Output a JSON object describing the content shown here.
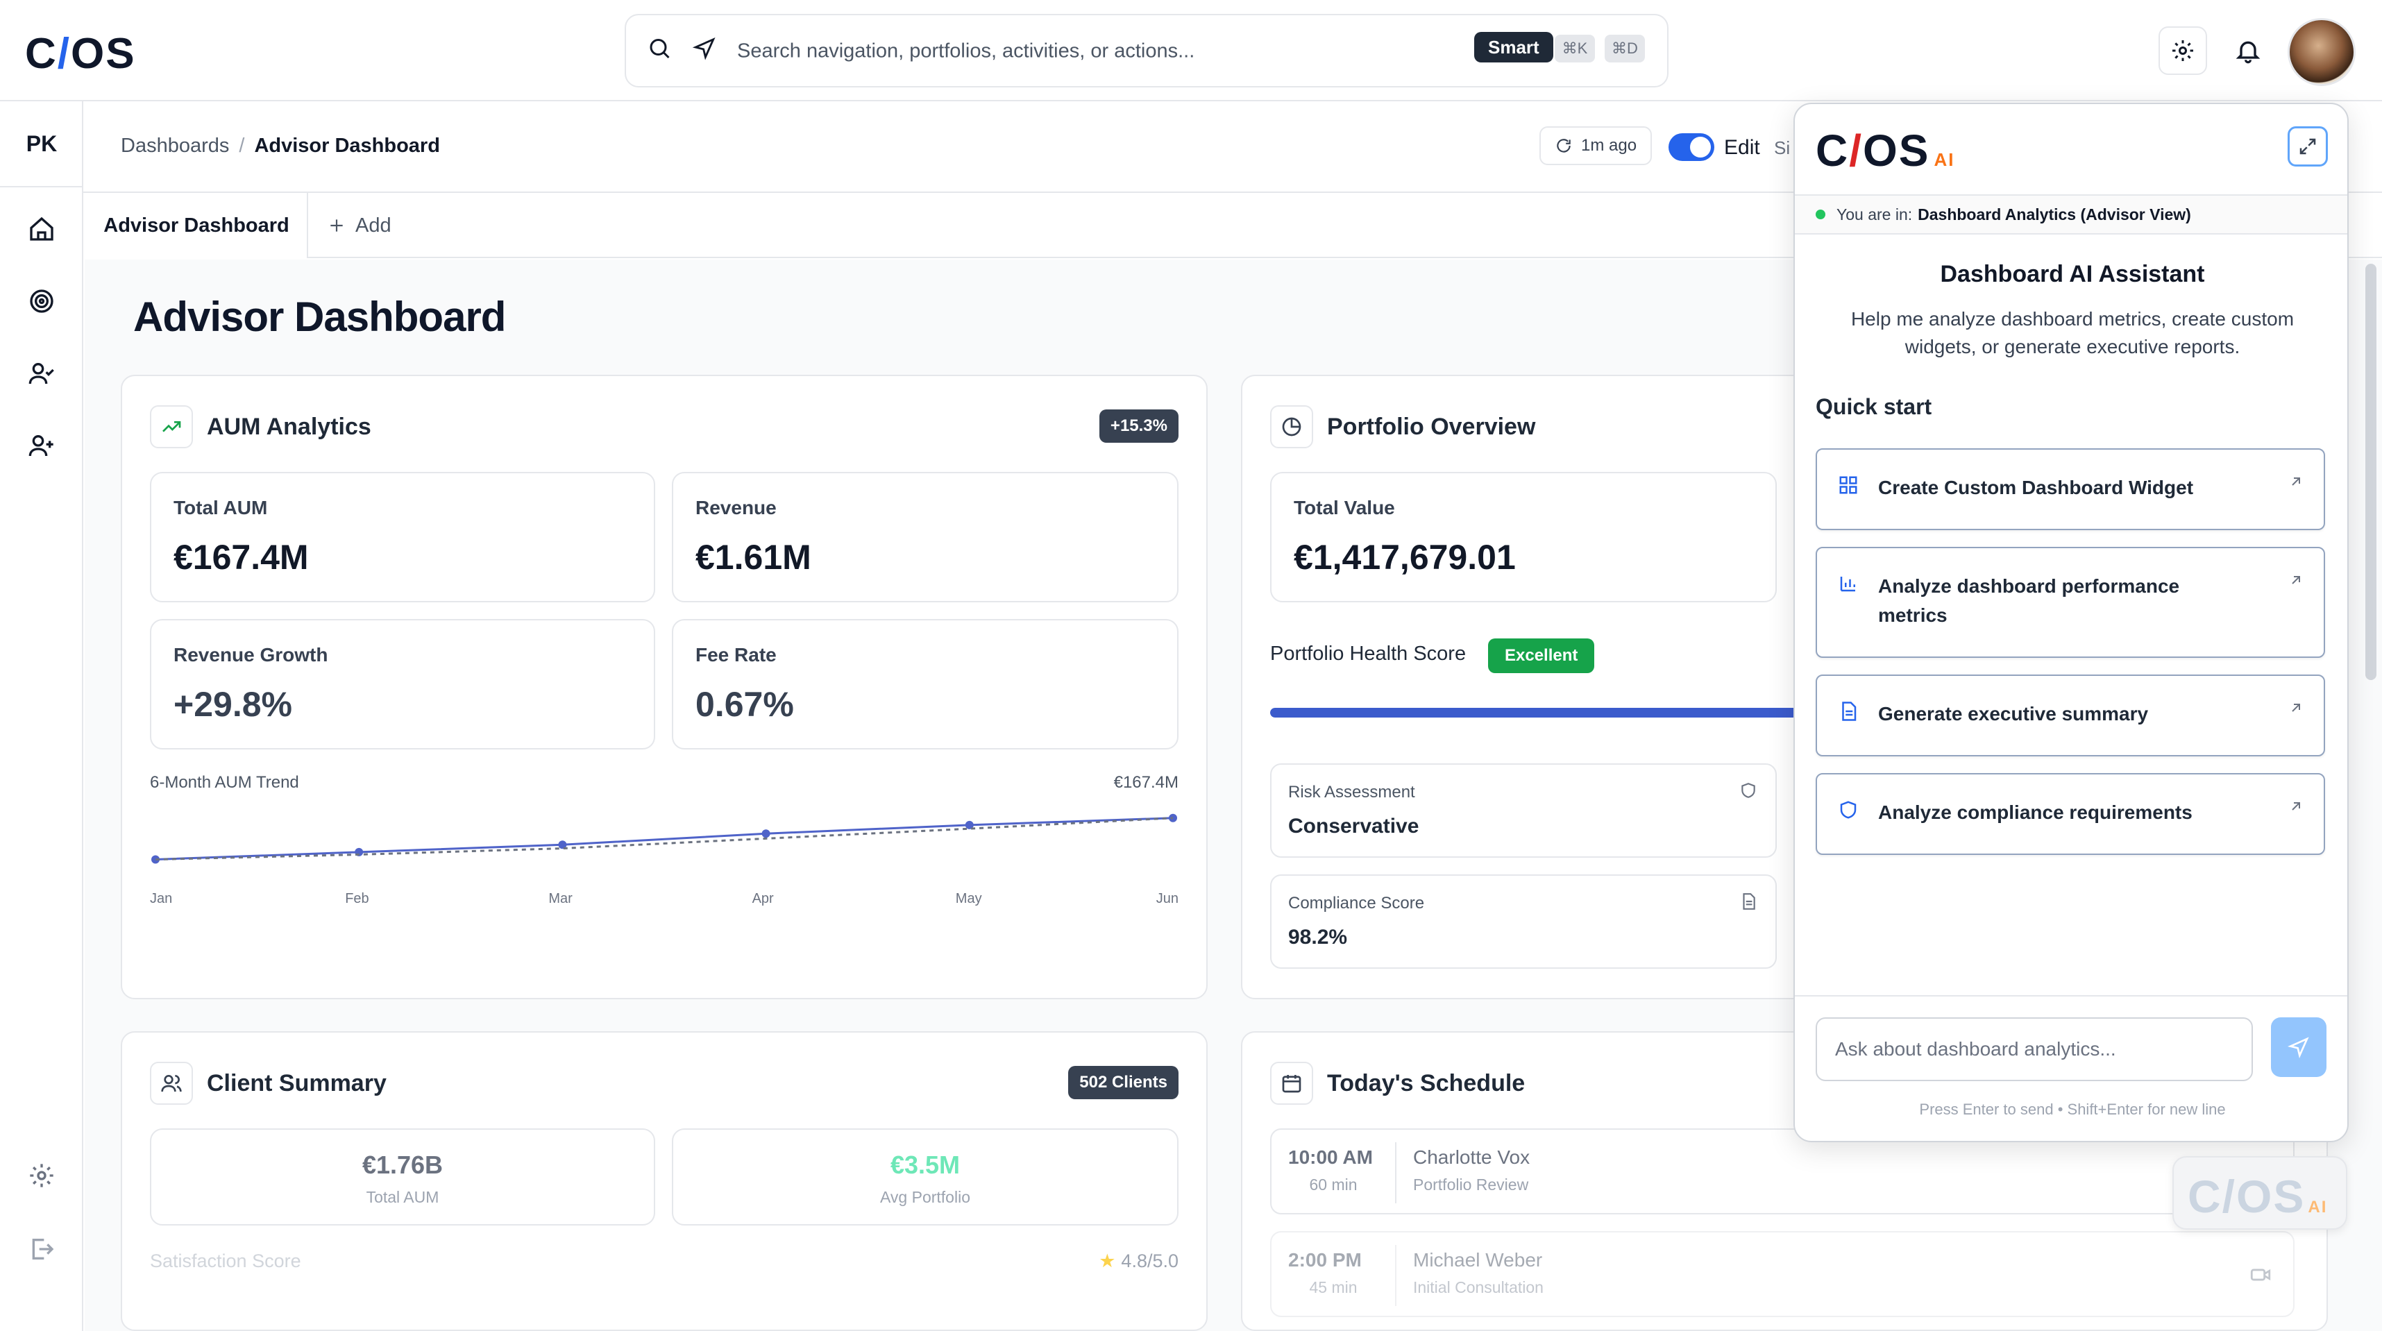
{
  "app": {
    "logo_text_left": "C",
    "logo_slash": "/",
    "logo_text_right": "OS"
  },
  "search": {
    "placeholder": "Search navigation, portfolios, activities, or actions...",
    "smart_label": "Smart",
    "kbd_k": "⌘K",
    "kbd_d": "⌘D"
  },
  "sidebar": {
    "initials": "PK",
    "items": [
      {
        "icon": "home-icon"
      },
      {
        "icon": "target-icon"
      },
      {
        "icon": "users-check-icon"
      },
      {
        "icon": "user-plus-icon"
      }
    ],
    "bottom": [
      {
        "icon": "settings-icon"
      },
      {
        "icon": "logout-icon"
      }
    ]
  },
  "header": {
    "breadcrumb_root": "Dashboards",
    "breadcrumb_sep": "/",
    "breadcrumb_current": "Advisor Dashboard",
    "updated": "1m ago",
    "edit_label": "Edit",
    "size_label": "Si"
  },
  "tabs": {
    "active": "Advisor Dashboard",
    "add": "Add"
  },
  "page": {
    "title": "Advisor Dashboard"
  },
  "aum": {
    "title": "AUM Analytics",
    "badge": "+15.3%",
    "metrics": [
      {
        "label": "Total AUM",
        "value": "€167.4M"
      },
      {
        "label": "Revenue",
        "value": "€1.61M"
      },
      {
        "label": "Revenue Growth",
        "value": "+29.8%"
      },
      {
        "label": "Fee Rate",
        "value": "0.67%"
      }
    ],
    "trend_label": "6-Month AUM Trend",
    "trend_max": "€167.4M"
  },
  "chart_data": {
    "type": "line",
    "categories": [
      "Jan",
      "Feb",
      "Mar",
      "Apr",
      "May",
      "Jun"
    ],
    "series": [
      {
        "values": [
          100,
          112,
          124,
          142,
          156,
          167.4
        ]
      },
      {
        "values": [
          100,
          108,
          118,
          134,
          150,
          167.4
        ]
      }
    ],
    "title": "6-Month AUM Trend",
    "ylim": [
      60,
      175
    ]
  },
  "portfolio": {
    "title": "Portfolio Overview",
    "total_value_label": "Total Value",
    "total_value": "€1,417,679.01",
    "health_label": "Portfolio Health Score",
    "health_badge": "Excellent",
    "health_progress": 0.95,
    "risk_label": "Risk Assessment",
    "risk_value": "Conservative",
    "compliance_label": "Compliance Score",
    "compliance_value": "98.2%"
  },
  "clients": {
    "title": "Client Summary",
    "badge": "502 Clients",
    "total_aum_value": "€1.76B",
    "total_aum_label": "Total AUM",
    "avg_value": "€3.5M",
    "avg_label": "Avg Portfolio",
    "satisfaction_label": "Satisfaction Score",
    "satisfaction_value": "4.8/5.0"
  },
  "schedule": {
    "title": "Today's Schedule",
    "items": [
      {
        "time": "10:00 AM",
        "duration": "60 min",
        "name": "Charlotte Vox",
        "type": "Portfolio Review"
      },
      {
        "time": "2:00 PM",
        "duration": "45 min",
        "name": "Michael Weber",
        "type": "Initial Consultation"
      }
    ]
  },
  "ai": {
    "logo_left": "C",
    "logo_slash": "/",
    "logo_right": "OS",
    "logo_ai": "AI",
    "context_prefix": "You are in:",
    "context_value": "Dashboard Analytics (Advisor View)",
    "heading": "Dashboard AI Assistant",
    "description": "Help me analyze dashboard metrics, create custom widgets, or generate executive reports.",
    "quick_start": "Quick start",
    "quick_items": [
      {
        "label": "Create Custom Dashboard Widget",
        "icon": "grid-icon"
      },
      {
        "label": "Analyze dashboard performance metrics",
        "icon": "bar-chart-icon"
      },
      {
        "label": "Generate executive summary",
        "icon": "document-icon"
      },
      {
        "label": "Analyze compliance requirements",
        "icon": "shield-icon"
      }
    ],
    "input_placeholder": "Ask about dashboard analytics...",
    "hint": "Press Enter to send • Shift+Enter for new line"
  },
  "colors": {
    "accent": "#2563eb",
    "success": "#16a34a",
    "ai_slash": "#dc2626"
  }
}
